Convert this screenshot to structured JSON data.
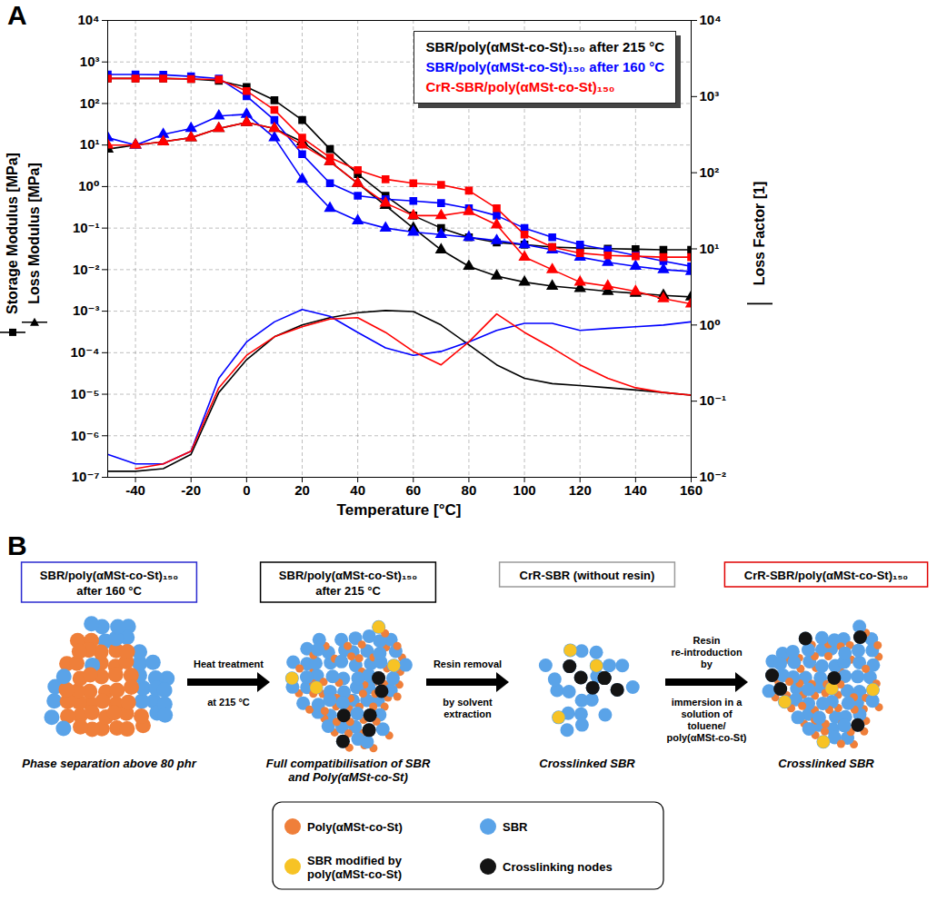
{
  "chart_data": {
    "type": "line",
    "label": "A",
    "xlabel": "Temperature [°C]",
    "ylabels": [
      {
        "text": "Storage Modulus [MPa]",
        "marker": "square"
      },
      {
        "text": "Loss Modulus [MPa]",
        "marker": "triangle"
      }
    ],
    "y2label": "Loss Factor [1]",
    "log": "y",
    "grid": true,
    "legend": "top-right",
    "x": [
      -50,
      -40,
      -30,
      -20,
      -10,
      0,
      10,
      20,
      30,
      40,
      50,
      60,
      70,
      80,
      90,
      100,
      110,
      120,
      130,
      140,
      150,
      160
    ],
    "xlim": [
      -50,
      160
    ],
    "xticks": [
      -40,
      -20,
      0,
      20,
      40,
      60,
      80,
      100,
      120,
      140,
      160
    ],
    "ylim": [
      1e-07,
      10000
    ],
    "yticks": [
      {
        "value": 1e-07,
        "label": "10⁻⁷"
      },
      {
        "value": 1e-06,
        "label": "10⁻⁶"
      },
      {
        "value": 1e-05,
        "label": "10⁻⁵"
      },
      {
        "value": 0.0001,
        "label": "10⁻⁴"
      },
      {
        "value": 0.001,
        "label": "10⁻³"
      },
      {
        "value": 0.01,
        "label": "10⁻²"
      },
      {
        "value": 0.1,
        "label": "10⁻¹"
      },
      {
        "value": 1,
        "label": "10⁰"
      },
      {
        "value": 10,
        "label": "10¹"
      },
      {
        "value": 100,
        "label": "10²"
      },
      {
        "value": 1000,
        "label": "10³"
      },
      {
        "value": 10000,
        "label": "10⁴"
      }
    ],
    "y2lim": [
      0.01,
      10000
    ],
    "y2ticks": [
      {
        "value": 0.01,
        "label": "10⁻²"
      },
      {
        "value": 0.1,
        "label": "10⁻¹"
      },
      {
        "value": 1,
        "label": "10⁰"
      },
      {
        "value": 10,
        "label": "10¹"
      },
      {
        "value": 100,
        "label": "10²"
      },
      {
        "value": 1000,
        "label": "10³"
      },
      {
        "value": 10000,
        "label": "10⁴"
      }
    ],
    "series": [
      {
        "name": "SBR/poly(αMSt-co-St)₁₅₀ after 215 °C",
        "color": "#000000",
        "marker": "square",
        "axis": "y",
        "values": [
          400,
          400,
          400,
          390,
          350,
          250,
          120,
          40,
          8,
          2,
          0.6,
          0.2,
          0.1,
          0.06,
          0.045,
          0.04,
          0.035,
          0.033,
          0.032,
          0.031,
          0.03,
          0.03
        ]
      },
      {
        "name": "SBR/poly(αMSt-co-St)₁₅₀ after 215 °C",
        "color": "#000000",
        "marker": "triangle",
        "axis": "y",
        "values": [
          8,
          10,
          12,
          15,
          25,
          35,
          25,
          12,
          4,
          1.2,
          0.35,
          0.1,
          0.03,
          0.012,
          0.007,
          0.005,
          0.004,
          0.0035,
          0.003,
          0.0027,
          0.0024,
          0.0022
        ]
      },
      {
        "name": "SBR/poly(αMSt-co-St)₁₅₀ after 215 °C",
        "color": "#000000",
        "marker": "none",
        "axis": "y2",
        "values": [
          0.012,
          0.012,
          0.013,
          0.02,
          0.13,
          0.35,
          0.7,
          1.0,
          1.25,
          1.45,
          1.55,
          1.5,
          1.0,
          0.55,
          0.3,
          0.2,
          0.17,
          0.16,
          0.15,
          0.14,
          0.13,
          0.12
        ]
      },
      {
        "name": "SBR/poly(αMSt-co-St)₁₅₀ after 160 °C",
        "color": "#0000ff",
        "marker": "square",
        "axis": "y",
        "values": [
          500,
          500,
          490,
          450,
          400,
          150,
          40,
          6,
          1.2,
          0.6,
          0.5,
          0.45,
          0.4,
          0.3,
          0.2,
          0.1,
          0.06,
          0.04,
          0.03,
          0.022,
          0.016,
          0.012
        ]
      },
      {
        "name": "SBR/poly(αMSt-co-St)₁₅₀ after 160 °C",
        "color": "#0000ff",
        "marker": "triangle",
        "axis": "y",
        "values": [
          15,
          10,
          18,
          25,
          50,
          55,
          15,
          1.5,
          0.3,
          0.15,
          0.1,
          0.08,
          0.07,
          0.06,
          0.05,
          0.04,
          0.03,
          0.02,
          0.015,
          0.012,
          0.01,
          0.009
        ]
      },
      {
        "name": "SBR/poly(αMSt-co-St)₁₅₀ after 160 °C",
        "color": "#0000ff",
        "marker": "none",
        "axis": "y2",
        "values": [
          0.02,
          0.015,
          0.015,
          0.022,
          0.2,
          0.6,
          1.1,
          1.6,
          1.3,
          0.8,
          0.5,
          0.4,
          0.45,
          0.6,
          0.85,
          1.05,
          1.05,
          0.85,
          0.9,
          0.95,
          1.0,
          1.1
        ]
      },
      {
        "name": "CrR-SBR/poly(αMSt-co-St)₁₅₀",
        "color": "#ff0000",
        "marker": "square",
        "axis": "y",
        "values": [
          400,
          400,
          400,
          390,
          380,
          200,
          70,
          15,
          5,
          2.5,
          1.5,
          1.2,
          1.1,
          0.8,
          0.3,
          0.07,
          0.035,
          0.025,
          0.022,
          0.021,
          0.02,
          0.02
        ]
      },
      {
        "name": "CrR-SBR/poly(αMSt-co-St)₁₅₀",
        "color": "#ff0000",
        "marker": "triangle",
        "axis": "y",
        "values": [
          10,
          10,
          12,
          15,
          25,
          35,
          25,
          10,
          4,
          1.2,
          0.4,
          0.2,
          0.2,
          0.25,
          0.12,
          0.02,
          0.01,
          0.005,
          0.004,
          0.003,
          0.002,
          0.0015
        ]
      },
      {
        "name": "CrR-SBR/poly(αMSt-co-St)₁₅₀",
        "color": "#ff0000",
        "marker": "none",
        "axis": "y2",
        "values": [
          null,
          0.013,
          0.015,
          0.022,
          0.15,
          0.4,
          0.7,
          0.95,
          1.2,
          1.25,
          0.8,
          0.45,
          0.3,
          0.6,
          1.4,
          0.8,
          0.5,
          0.3,
          0.2,
          0.15,
          0.13,
          0.12
        ]
      }
    ]
  },
  "diagram": {
    "label": "B",
    "stages": [
      {
        "title": "SBR/poly(αMSt-co-St)₁₅₀ after 160 °C",
        "caption": "Phase separation above 80 phr",
        "color": "#2a2ad0"
      },
      {
        "title": "SBR/poly(αMSt-co-St)₁₅₀ after 215 °C",
        "caption": "Full compatibilisation of SBR and Poly(αMSt-co-St)",
        "color": "#000000"
      },
      {
        "title": "CrR-SBR (without resin)",
        "caption": "Crosslinked SBR",
        "color": "#9a9a9a"
      },
      {
        "title": "CrR-SBR/poly(αMSt-co-St)₁₅₀",
        "caption": "Crosslinked SBR",
        "color": "#e00000"
      }
    ],
    "arrows": [
      {
        "above": "Heat treatment",
        "below": "at 215 °C"
      },
      {
        "above": "Resin removal",
        "below": "by solvent extraction"
      },
      {
        "above": "Resin re-introduction by",
        "below": "immersion in a solution of toluene/ poly(αMSt-co-St)"
      }
    ],
    "legend": [
      {
        "label": "Poly(αMSt-co-St)",
        "color": "#ef7f3a"
      },
      {
        "label": "SBR",
        "color": "#5aa3e8"
      },
      {
        "label": "SBR modified by poly(αMSt-co-St)",
        "color": "#f7c325"
      },
      {
        "label": "Crosslinking nodes",
        "color": "#141414"
      }
    ]
  }
}
